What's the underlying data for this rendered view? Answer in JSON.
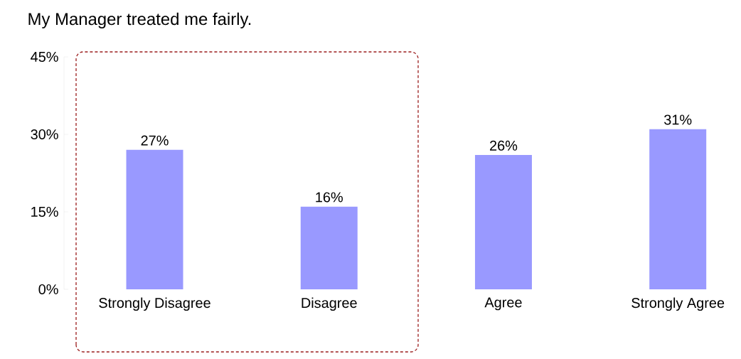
{
  "chart_data": {
    "type": "bar",
    "title": "My Manager treated me fairly.",
    "categories": [
      "Strongly Disagree",
      "Disagree",
      "Agree",
      "Strongly Agree"
    ],
    "values": [
      27,
      16,
      26,
      31
    ],
    "value_labels": [
      "27%",
      "16%",
      "26%",
      "31%"
    ],
    "color": "#9999ff",
    "ylim": [
      0,
      45
    ],
    "yticks": [
      {
        "value": 0,
        "label": "0%"
      },
      {
        "value": 15,
        "label": "15%"
      },
      {
        "value": 30,
        "label": "30%"
      },
      {
        "value": 45,
        "label": "45%"
      }
    ],
    "grid": false
  }
}
